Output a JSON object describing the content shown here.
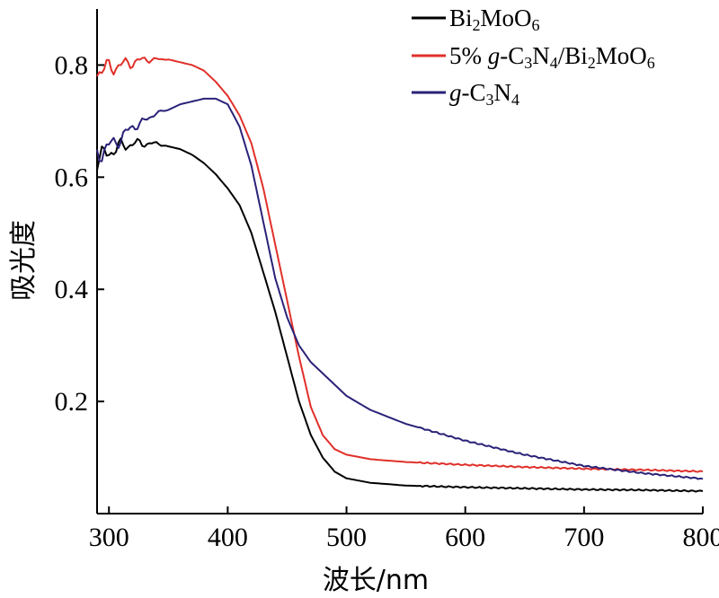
{
  "chart_data": {
    "type": "line",
    "title": "",
    "xlabel": "波长/nm",
    "ylabel": "吸光度",
    "xlim": [
      290,
      800
    ],
    "ylim": [
      0.0,
      0.9
    ],
    "xticks": [
      300,
      400,
      500,
      600,
      700,
      800
    ],
    "yticks": [
      0.2,
      0.4,
      0.6,
      0.8
    ],
    "grid": false,
    "legend_position": "top-right",
    "series": [
      {
        "name": "Bi2MoO6",
        "label_parts": [
          {
            "t": "Bi"
          },
          {
            "t": "2",
            "sub": true
          },
          {
            "t": "MoO"
          },
          {
            "t": "6",
            "sub": true
          }
        ],
        "color": "#000000",
        "x": [
          290,
          300,
          310,
          320,
          330,
          340,
          350,
          360,
          370,
          380,
          390,
          400,
          410,
          420,
          430,
          440,
          450,
          460,
          470,
          480,
          490,
          500,
          520,
          550,
          600,
          650,
          700,
          750,
          800
        ],
        "y": [
          0.63,
          0.645,
          0.655,
          0.66,
          0.66,
          0.66,
          0.655,
          0.65,
          0.64,
          0.625,
          0.605,
          0.58,
          0.55,
          0.5,
          0.43,
          0.36,
          0.28,
          0.2,
          0.14,
          0.1,
          0.075,
          0.063,
          0.055,
          0.05,
          0.047,
          0.045,
          0.043,
          0.042,
          0.04
        ]
      },
      {
        "name": "5% g-C3N4/Bi2MoO6",
        "label_parts": [
          {
            "t": "5% "
          },
          {
            "t": "g",
            "italic": true
          },
          {
            "t": "-C"
          },
          {
            "t": "3",
            "sub": true
          },
          {
            "t": "N"
          },
          {
            "t": "4",
            "sub": true
          },
          {
            "t": "/Bi"
          },
          {
            "t": "2",
            "sub": true
          },
          {
            "t": "MoO"
          },
          {
            "t": "6",
            "sub": true
          }
        ],
        "color": "#e0302a",
        "x": [
          290,
          300,
          310,
          320,
          330,
          340,
          350,
          360,
          370,
          380,
          390,
          400,
          410,
          420,
          430,
          440,
          450,
          460,
          470,
          480,
          490,
          500,
          520,
          550,
          600,
          650,
          700,
          750,
          800
        ],
        "y": [
          0.79,
          0.795,
          0.8,
          0.805,
          0.81,
          0.81,
          0.81,
          0.805,
          0.8,
          0.79,
          0.77,
          0.745,
          0.71,
          0.66,
          0.58,
          0.48,
          0.38,
          0.28,
          0.19,
          0.14,
          0.115,
          0.105,
          0.097,
          0.092,
          0.087,
          0.083,
          0.08,
          0.078,
          0.075
        ]
      },
      {
        "name": "g-C3N4",
        "label_parts": [
          {
            "t": "g",
            "italic": true
          },
          {
            "t": "-C"
          },
          {
            "t": "3",
            "sub": true
          },
          {
            "t": "N"
          },
          {
            "t": "4",
            "sub": true
          }
        ],
        "color": "#2a2278",
        "x": [
          290,
          300,
          310,
          320,
          330,
          340,
          350,
          360,
          370,
          380,
          390,
          400,
          410,
          420,
          430,
          440,
          450,
          460,
          470,
          480,
          500,
          520,
          550,
          600,
          650,
          700,
          750,
          800
        ],
        "y": [
          0.64,
          0.655,
          0.67,
          0.69,
          0.7,
          0.715,
          0.72,
          0.73,
          0.735,
          0.74,
          0.74,
          0.73,
          0.69,
          0.62,
          0.52,
          0.42,
          0.35,
          0.3,
          0.27,
          0.25,
          0.21,
          0.185,
          0.16,
          0.13,
          0.105,
          0.085,
          0.072,
          0.062
        ]
      }
    ]
  }
}
